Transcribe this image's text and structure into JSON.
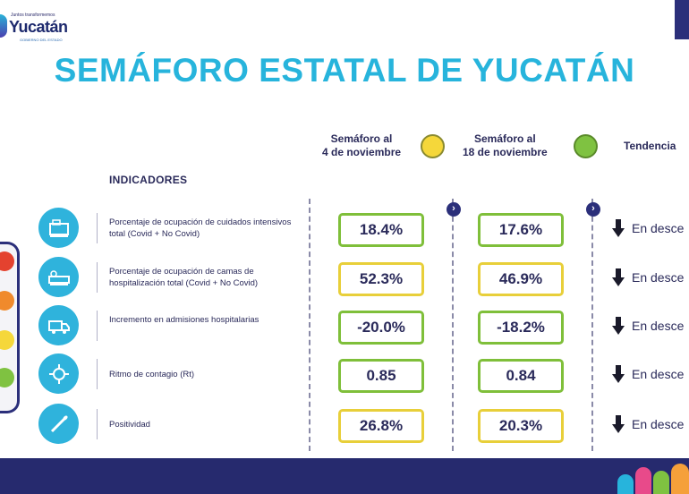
{
  "header": {
    "logo_small": "Juntos transformemos",
    "logo_main": "Yucatán",
    "logo_sub": "GOBIERNO DEL ESTADO"
  },
  "title": "SEMÁFORO ESTATAL DE YUCATÁN",
  "columns": {
    "indicators": "INDICADORES",
    "col1": "Semáforo al\n4 de noviembre",
    "col1_color": "#f5d73a",
    "col2": "Semáforo al\n18 de noviembre",
    "col2_color": "#7fc241",
    "col3": "Tendencia"
  },
  "rows": [
    {
      "icon": "icu-bed-icon",
      "label": "Porcentaje de ocupación de cuidados intensivos total (Covid + No Covid)",
      "v1": "18.4%",
      "v1_color": "#7fbf3a",
      "v2": "17.6%",
      "v2_color": "#7fbf3a",
      "trend": "En desce"
    },
    {
      "icon": "hospital-bed-icon",
      "label": "Porcentaje de ocupación de camas de hospitalización total (Covid + No Covid)",
      "v1": "52.3%",
      "v1_color": "#e8cf3a",
      "v2": "46.9%",
      "v2_color": "#e8cf3a",
      "trend": "En desce"
    },
    {
      "icon": "ambulance-icon",
      "label": "Incremento en admisiones hospitalarias",
      "v1": "-20.0%",
      "v1_color": "#7fbf3a",
      "v2": "-18.2%",
      "v2_color": "#7fbf3a",
      "trend": "En desce"
    },
    {
      "icon": "virus-icon",
      "label": "Ritmo de contagio (Rt)",
      "v1": "0.85",
      "v1_color": "#7fbf3a",
      "v2": "0.84",
      "v2_color": "#7fbf3a",
      "trend": "En desce"
    },
    {
      "icon": "swab-test-icon",
      "label": "Positividad",
      "v1": "26.8%",
      "v1_color": "#e8cf3a",
      "v2": "20.3%",
      "v2_color": "#e8cf3a",
      "trend": "En desce"
    }
  ],
  "traffic_light": [
    "#e4422f",
    "#f08a2c",
    "#f5d73a",
    "#7fc241"
  ],
  "colors": {
    "accent": "#27b4dc",
    "navy": "#262a6e"
  }
}
